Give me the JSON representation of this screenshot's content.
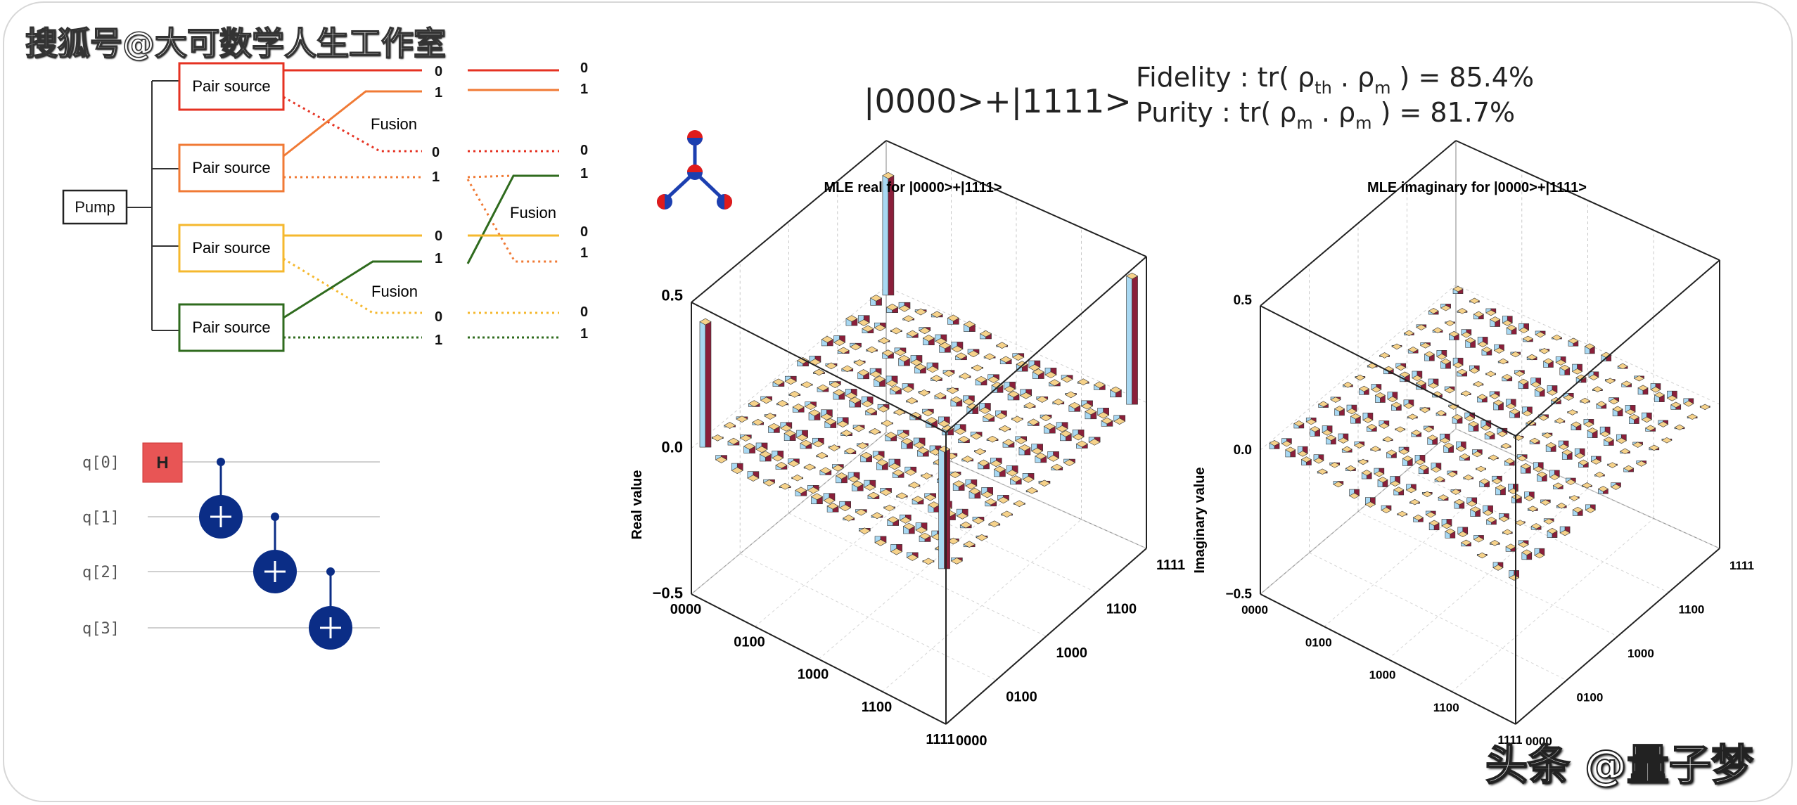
{
  "watermark_top": "搜狐号@大可数学人生工作室",
  "watermark_bottom": "头条 @量子梦",
  "photonic": {
    "pump_label": "Pump",
    "pair_source_label": "Pair source",
    "fusion_label": "Fusion",
    "port_labels": [
      "0",
      "1"
    ]
  },
  "circuit": {
    "qubits": [
      "q[0]",
      "q[1]",
      "q[2]",
      "q[3]"
    ],
    "h_gate": "H",
    "gate_color": "#e85555",
    "cnot_color": "#0b2d86"
  },
  "state_label": "|0000>+|1111>",
  "fidelity_text": "Fidelity : tr( ρ",
  "fidelity_sub1": "th",
  "fidelity_dot": " . ρ",
  "fidelity_sub2": "m",
  "fidelity_value": ") = 85.4%",
  "purity_text": "Purity : tr( ρ",
  "purity_sub1": "m",
  "purity_dot": " . ρ",
  "purity_sub2": "m",
  "purity_value": ") = 81.7%",
  "colors": {
    "red": "#e53222",
    "orange": "#f07a35",
    "yellow": "#f5b82e",
    "green": "#2f6b1e",
    "bar_top": "#f6d28a",
    "bar_blue": "#a8d8f2",
    "bar_red": "#8a1f3a"
  },
  "charts": [
    {
      "title": "MLE real for |0000>+|1111>",
      "ylabel": "Real value",
      "zticks": [
        "0.5",
        "0.0",
        "−0.5"
      ],
      "xticks": [
        "0000",
        "0100",
        "1000",
        "1100",
        "1111"
      ],
      "yticks": [
        "0000",
        "0100",
        "1000",
        "1100",
        "1111"
      ]
    },
    {
      "title": "MLE imaginary for |0000>+|1111>",
      "ylabel": "Imaginary value",
      "zticks": [
        "0.5",
        "0.0",
        "−0.5"
      ],
      "xticks": [
        "0000",
        "0100",
        "1000",
        "1100",
        "1111"
      ],
      "yticks": [
        "0000",
        "0100",
        "1000",
        "1100",
        "1111"
      ]
    }
  ],
  "chart_data": [
    {
      "type": "bar3d",
      "title": "MLE real for |0000>+|1111>",
      "zlabel": "Real value",
      "zlim": [
        -0.5,
        0.5
      ],
      "basis": [
        "0000",
        "0100",
        "1000",
        "1100",
        "1111"
      ],
      "dominant_elements": [
        {
          "row": "0000",
          "col": "0000",
          "value": 0.43
        },
        {
          "row": "0000",
          "col": "1111",
          "value": 0.41
        },
        {
          "row": "1111",
          "col": "0000",
          "value": 0.41
        },
        {
          "row": "1111",
          "col": "1111",
          "value": 0.44
        }
      ]
    },
    {
      "type": "bar3d",
      "title": "MLE imaginary for |0000>+|1111>",
      "zlabel": "Imaginary value",
      "zlim": [
        -0.5,
        0.5
      ],
      "basis": [
        "0000",
        "0100",
        "1000",
        "1100",
        "1111"
      ],
      "dominant_elements": []
    }
  ]
}
